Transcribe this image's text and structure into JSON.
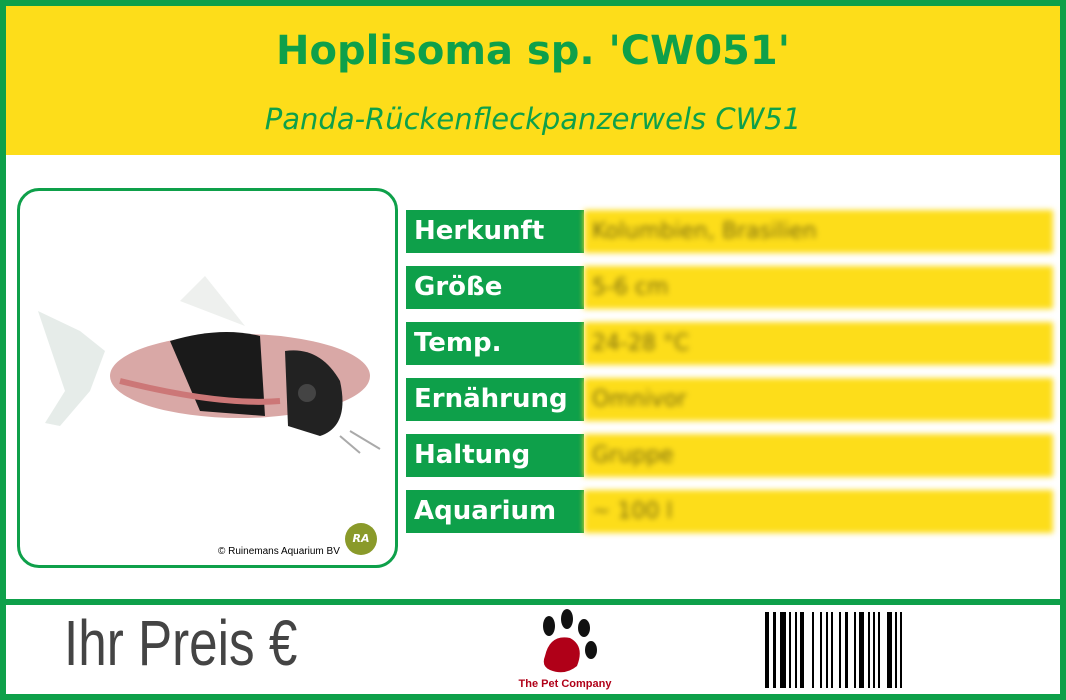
{
  "header": {
    "title": "Hoplisoma sp. 'CW051'",
    "subtitle": "Panda-Rückenfleckpanzerwels CW51"
  },
  "photo": {
    "credit": "© Ruinemans Aquarium BV",
    "badge": "RA"
  },
  "facts": [
    {
      "label": "Herkunft",
      "value": "Kolumbien, Brasilien"
    },
    {
      "label": "Größe",
      "value": "5-6 cm"
    },
    {
      "label": "Temp.",
      "value": "24-28 °C"
    },
    {
      "label": "Ernährung",
      "value": "Omnivor"
    },
    {
      "label": "Haltung",
      "value": "Gruppe"
    },
    {
      "label": "Aquarium",
      "value": "~ 100 l"
    }
  ],
  "footer": {
    "price_label": "Ihr Preis €",
    "brand": "The Pet Company"
  },
  "colors": {
    "green": "#0ea04a",
    "yellow": "#fddd1a",
    "brand_red": "#b00018"
  }
}
